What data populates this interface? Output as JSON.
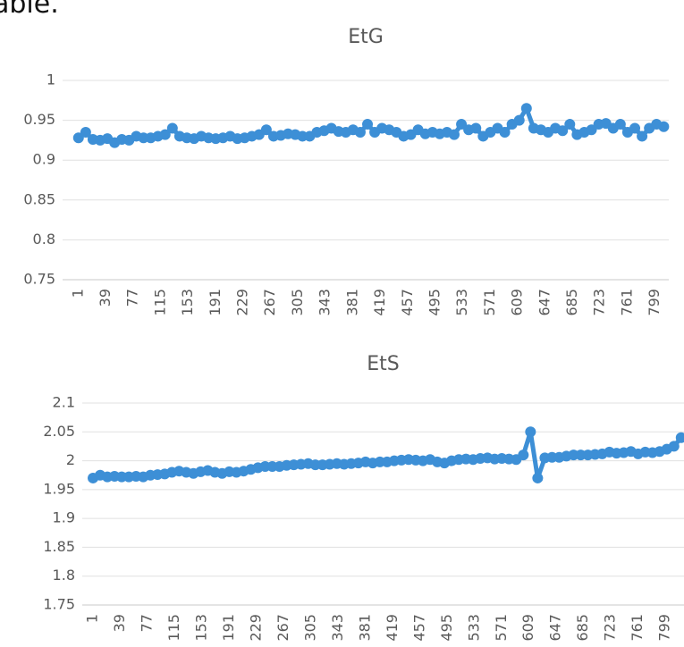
{
  "caption": "able.",
  "chart_data": [
    {
      "type": "line",
      "title": "EtG",
      "color": "#3d8fd6",
      "grid": true,
      "xlim": [
        -21,
        818
      ],
      "xticks": [
        1,
        39,
        77,
        115,
        153,
        191,
        229,
        267,
        305,
        343,
        381,
        419,
        457,
        495,
        533,
        571,
        609,
        647,
        685,
        723,
        761,
        799
      ],
      "ylim": [
        0.75,
        1
      ],
      "yticks": [
        0.75,
        0.8,
        0.85,
        0.9,
        0.95,
        1
      ],
      "x": [
        1,
        11,
        21,
        31,
        41,
        51,
        61,
        71,
        81,
        91,
        101,
        111,
        121,
        131,
        141,
        151,
        161,
        171,
        181,
        191,
        201,
        211,
        221,
        231,
        241,
        251,
        261,
        271,
        281,
        291,
        301,
        311,
        321,
        331,
        341,
        351,
        361,
        371,
        381,
        391,
        401,
        411,
        421,
        431,
        441,
        451,
        461,
        471,
        481,
        491,
        501,
        511,
        521,
        531,
        541,
        551,
        561,
        571,
        581,
        591,
        601,
        611,
        621,
        631,
        641,
        651,
        661,
        671,
        681,
        691,
        701,
        711,
        721,
        731,
        741,
        751,
        761,
        771,
        781,
        791,
        801,
        811
      ],
      "values": [
        0.928,
        0.935,
        0.926,
        0.925,
        0.927,
        0.922,
        0.926,
        0.925,
        0.93,
        0.928,
        0.928,
        0.93,
        0.932,
        0.94,
        0.93,
        0.928,
        0.927,
        0.93,
        0.928,
        0.927,
        0.928,
        0.93,
        0.927,
        0.928,
        0.93,
        0.932,
        0.938,
        0.93,
        0.931,
        0.933,
        0.932,
        0.93,
        0.93,
        0.935,
        0.937,
        0.94,
        0.936,
        0.935,
        0.938,
        0.935,
        0.945,
        0.935,
        0.94,
        0.938,
        0.935,
        0.93,
        0.932,
        0.938,
        0.933,
        0.935,
        0.933,
        0.935,
        0.932,
        0.945,
        0.938,
        0.94,
        0.93,
        0.935,
        0.94,
        0.935,
        0.945,
        0.95,
        0.965,
        0.94,
        0.938,
        0.935,
        0.94,
        0.937,
        0.945,
        0.932,
        0.935,
        0.938,
        0.945,
        0.946,
        0.94,
        0.945,
        0.935,
        0.94,
        0.93,
        0.94,
        0.945,
        0.942
      ]
    },
    {
      "type": "line",
      "title": "EtS",
      "color": "#3d8fd6",
      "grid": true,
      "xlim": [
        -14,
        825
      ],
      "xticks": [
        1,
        39,
        77,
        115,
        153,
        191,
        229,
        267,
        305,
        343,
        381,
        419,
        457,
        495,
        533,
        571,
        609,
        647,
        685,
        723,
        761,
        799
      ],
      "ylim": [
        1.75,
        2.1
      ],
      "yticks": [
        1.75,
        1.8,
        1.85,
        1.9,
        1.95,
        2,
        2.05,
        2.1
      ],
      "x": [
        1,
        11,
        21,
        31,
        41,
        51,
        61,
        71,
        81,
        91,
        101,
        111,
        121,
        131,
        141,
        151,
        161,
        171,
        181,
        191,
        201,
        211,
        221,
        231,
        241,
        251,
        261,
        271,
        281,
        291,
        301,
        311,
        321,
        331,
        341,
        351,
        361,
        371,
        381,
        391,
        401,
        411,
        421,
        431,
        441,
        451,
        461,
        471,
        481,
        491,
        501,
        511,
        521,
        531,
        541,
        551,
        561,
        571,
        581,
        591,
        601,
        611,
        621,
        631,
        641,
        651,
        661,
        671,
        681,
        691,
        701,
        711,
        721,
        731,
        741,
        751,
        761,
        771,
        781,
        791,
        801,
        811,
        821
      ],
      "values": [
        1.97,
        1.975,
        1.972,
        1.973,
        1.972,
        1.972,
        1.973,
        1.972,
        1.975,
        1.976,
        1.977,
        1.98,
        1.982,
        1.98,
        1.978,
        1.981,
        1.983,
        1.98,
        1.978,
        1.981,
        1.98,
        1.982,
        1.985,
        1.988,
        1.99,
        1.99,
        1.99,
        1.992,
        1.993,
        1.994,
        1.995,
        1.993,
        1.993,
        1.994,
        1.995,
        1.994,
        1.995,
        1.996,
        1.998,
        1.996,
        1.998,
        1.998,
        2.0,
        2.001,
        2.002,
        2.001,
        2.0,
        2.002,
        1.998,
        1.996,
        2.0,
        2.002,
        2.003,
        2.002,
        2.004,
        2.005,
        2.003,
        2.004,
        2.003,
        2.002,
        2.01,
        2.05,
        1.97,
        2.005,
        2.006,
        2.006,
        2.008,
        2.01,
        2.01,
        2.01,
        2.011,
        2.012,
        2.015,
        2.013,
        2.014,
        2.016,
        2.012,
        2.015,
        2.014,
        2.016,
        2.02,
        2.025,
        2.04
      ]
    }
  ]
}
